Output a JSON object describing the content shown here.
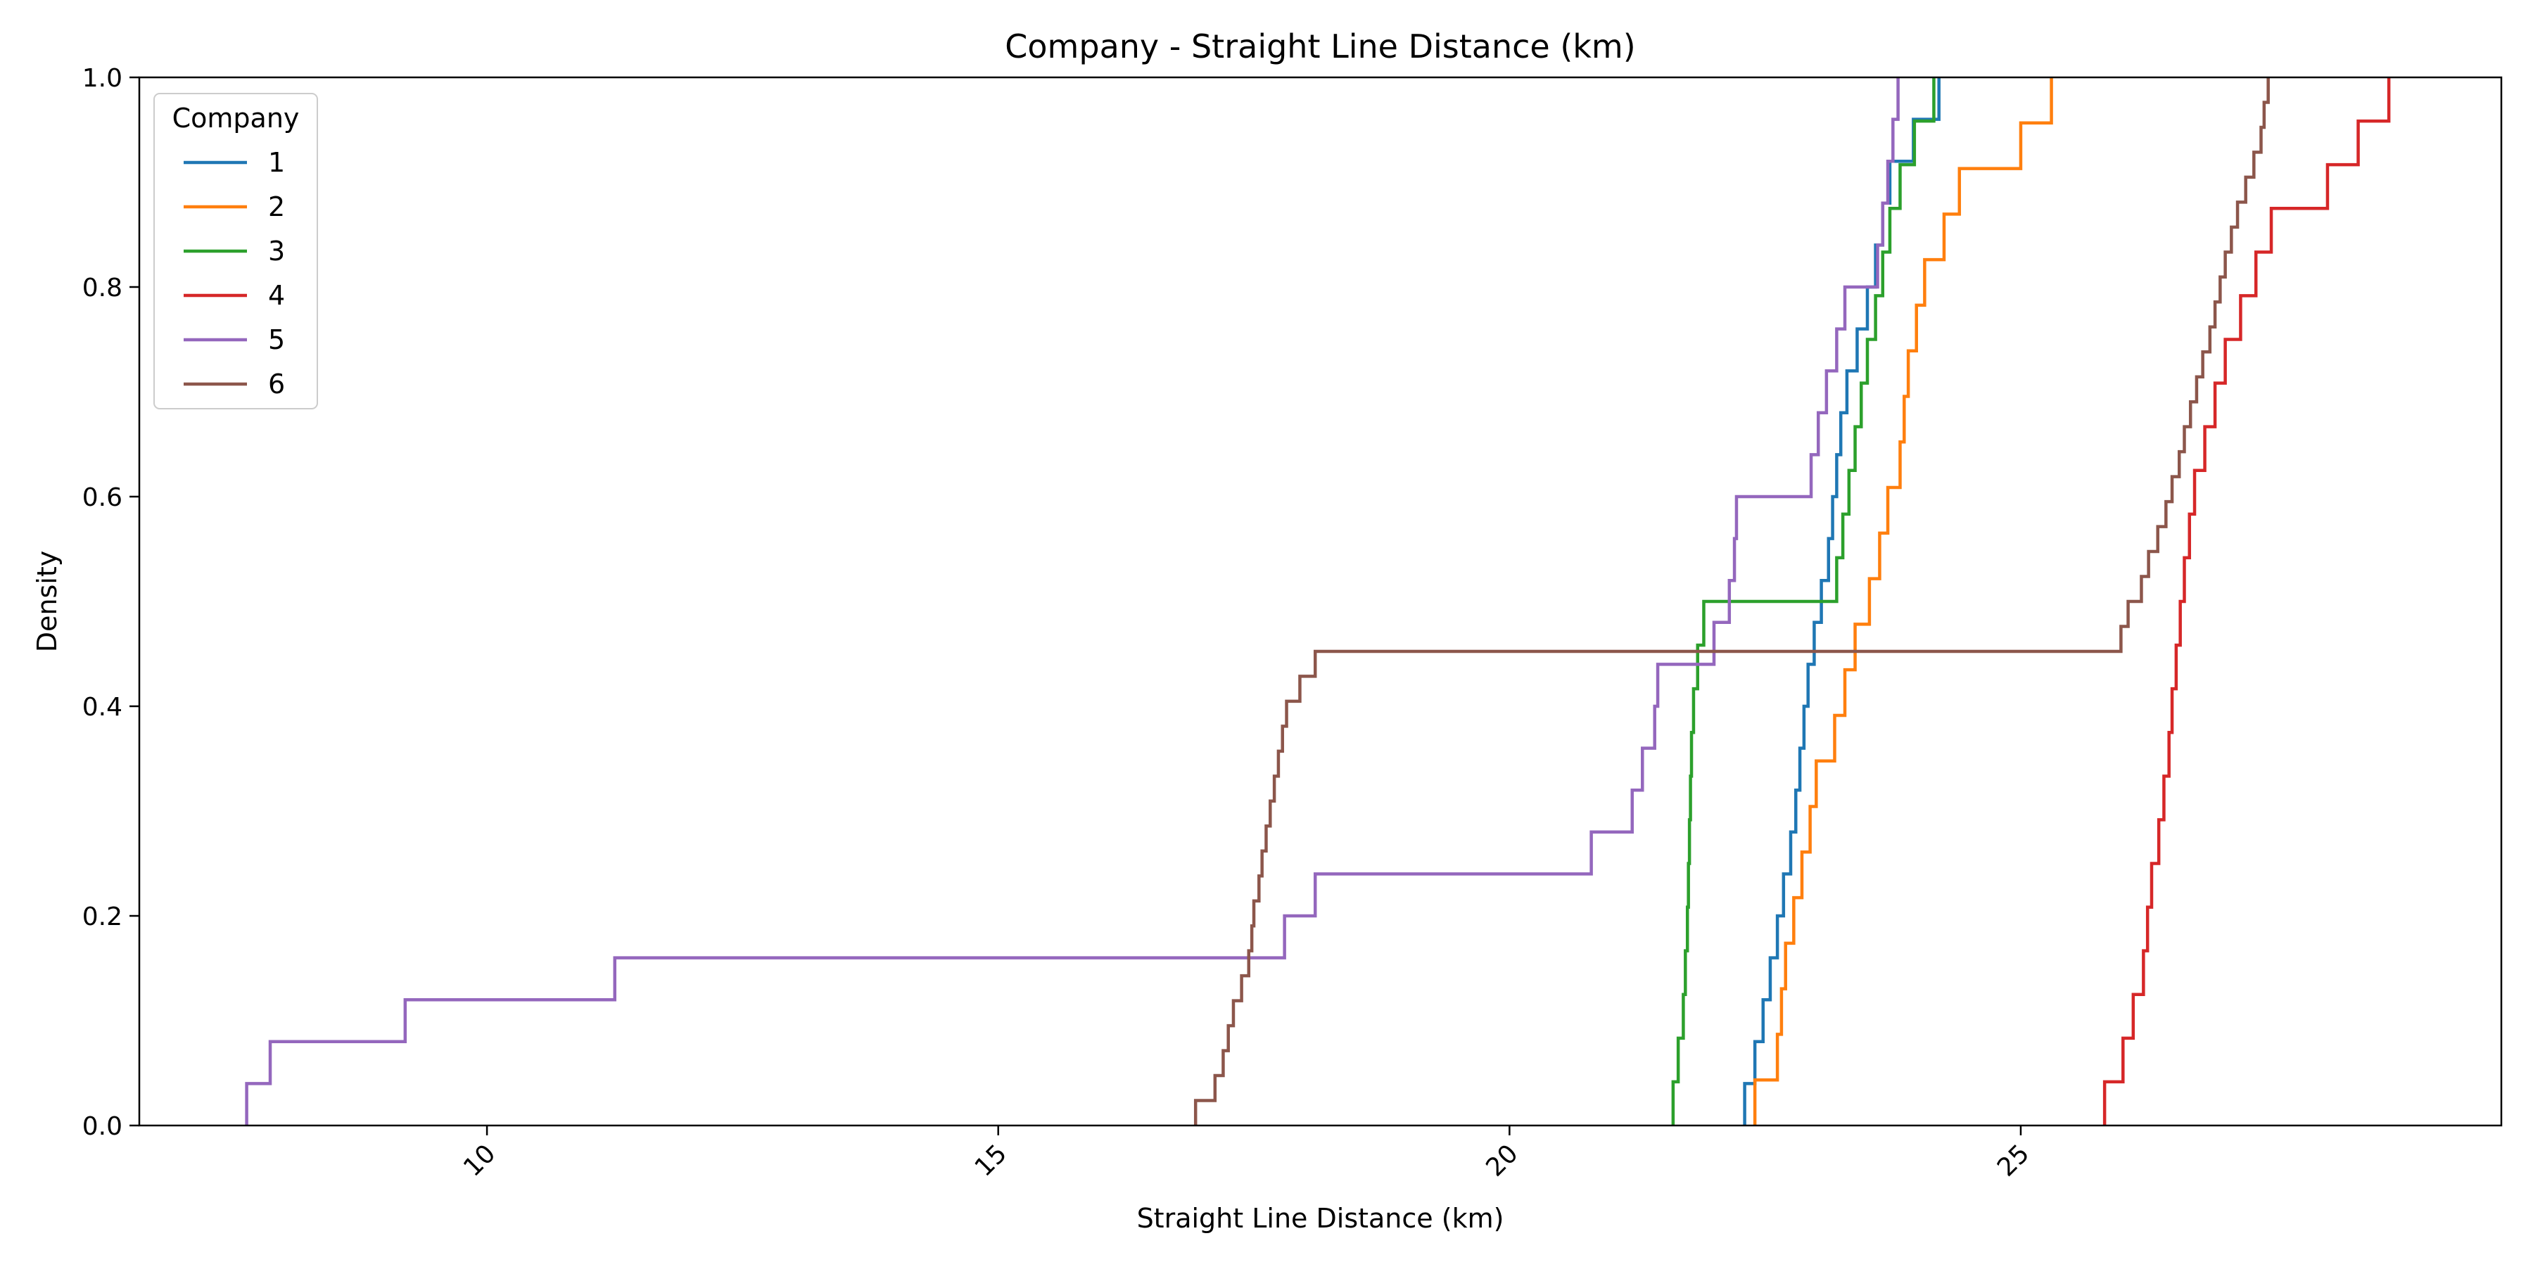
{
  "chart_data": {
    "type": "line",
    "drawstyle": "ecdf-step",
    "title": "Company - Straight Line Distance (km)",
    "xlabel": "Straight Line Distance (km)",
    "ylabel": "Density",
    "xlim": [
      6.6,
      29.7
    ],
    "ylim": [
      0.0,
      1.0
    ],
    "xticks": [
      10,
      15,
      20,
      25
    ],
    "xtick_labels": [
      "10",
      "15",
      "20",
      "25"
    ],
    "yticks": [
      0.0,
      0.2,
      0.4,
      0.6,
      0.8,
      1.0
    ],
    "ytick_labels": [
      "0.0",
      "0.2",
      "0.4",
      "0.6",
      "0.8",
      "1.0"
    ],
    "xtick_rotation": 45,
    "grid": false,
    "legend": {
      "title": "Company",
      "placement": "upper-left"
    },
    "series": [
      {
        "name": "1",
        "color": "#1f77b4",
        "x": [
          22.3,
          22.4,
          22.48,
          22.55,
          22.62,
          22.68,
          22.75,
          22.8,
          22.84,
          22.88,
          22.92,
          22.98,
          23.05,
          23.12,
          23.16,
          23.2,
          23.24,
          23.3,
          23.4,
          23.5,
          23.58,
          23.65,
          23.72,
          23.95,
          24.2
        ]
      },
      {
        "name": "2",
        "color": "#ff7f0e",
        "x": [
          22.4,
          22.62,
          22.66,
          22.7,
          22.78,
          22.86,
          22.94,
          23.0,
          23.18,
          23.28,
          23.38,
          23.52,
          23.62,
          23.7,
          23.82,
          23.86,
          23.9,
          23.98,
          24.06,
          24.25,
          24.4,
          25.0,
          25.3
        ]
      },
      {
        "name": "3",
        "color": "#2ca02c",
        "x": [
          21.6,
          21.65,
          21.7,
          21.72,
          21.74,
          21.75,
          21.76,
          21.77,
          21.78,
          21.8,
          21.84,
          21.9,
          23.2,
          23.26,
          23.32,
          23.38,
          23.44,
          23.5,
          23.58,
          23.65,
          23.72,
          23.82,
          23.96,
          24.15
        ]
      },
      {
        "name": "4",
        "color": "#d62728",
        "x": [
          25.82,
          26.0,
          26.1,
          26.2,
          26.24,
          26.28,
          26.35,
          26.4,
          26.45,
          26.48,
          26.52,
          26.56,
          26.6,
          26.65,
          26.7,
          26.8,
          26.9,
          27.0,
          27.15,
          27.3,
          27.45,
          28.0,
          28.3,
          28.6
        ]
      },
      {
        "name": "5",
        "color": "#9467bd",
        "x": [
          7.65,
          7.88,
          9.2,
          11.25,
          17.8,
          18.1,
          20.8,
          21.2,
          21.3,
          21.42,
          21.45,
          22.0,
          22.15,
          22.2,
          22.22,
          22.95,
          23.02,
          23.1,
          23.2,
          23.28,
          23.6,
          23.65,
          23.7,
          23.75,
          23.8
        ]
      },
      {
        "name": "6",
        "color": "#8c564b",
        "x": [
          16.93,
          17.12,
          17.2,
          17.25,
          17.3,
          17.38,
          17.45,
          17.48,
          17.5,
          17.55,
          17.58,
          17.62,
          17.66,
          17.7,
          17.74,
          17.78,
          17.82,
          17.95,
          18.1,
          25.98,
          26.05,
          26.18,
          26.25,
          26.34,
          26.42,
          26.48,
          26.55,
          26.6,
          26.66,
          26.72,
          26.78,
          26.85,
          26.9,
          26.95,
          27.0,
          27.06,
          27.12,
          27.2,
          27.28,
          27.35,
          27.38,
          27.42
        ]
      }
    ]
  }
}
